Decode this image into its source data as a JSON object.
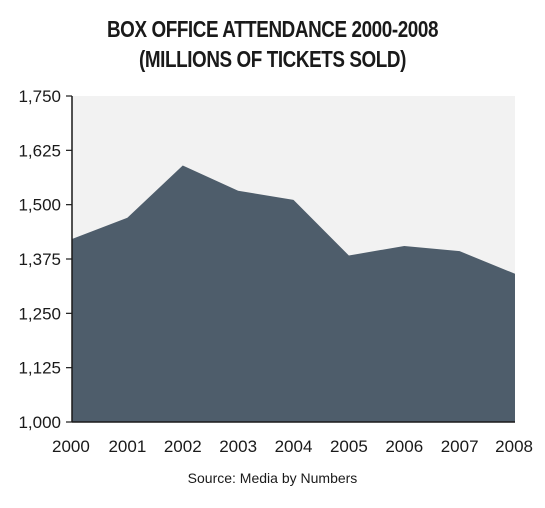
{
  "chart_data": {
    "type": "area",
    "title": "BOX OFFICE ATTENDANCE 2000-2008",
    "subtitle": "(MILLIONS OF TICKETS SOLD)",
    "x": [
      "2000",
      "2001",
      "2002",
      "2003",
      "2004",
      "2005",
      "2006",
      "2007",
      "2008"
    ],
    "values": [
      1421,
      1470,
      1590,
      1532,
      1511,
      1383,
      1405,
      1393,
      1341
    ],
    "ylim": [
      1000,
      1750
    ],
    "yticks": [
      "1,000",
      "1,125",
      "1,250",
      "1,375",
      "1,500",
      "1,625",
      "1,750"
    ],
    "ytick_values": [
      1000,
      1125,
      1250,
      1375,
      1500,
      1625,
      1750
    ],
    "grid": false,
    "source": "Source: Media by Numbers",
    "colors": {
      "area_fill": "#4e5d6b",
      "plot_background": "#f2f2f2",
      "axis": "#1a1a1a"
    }
  }
}
